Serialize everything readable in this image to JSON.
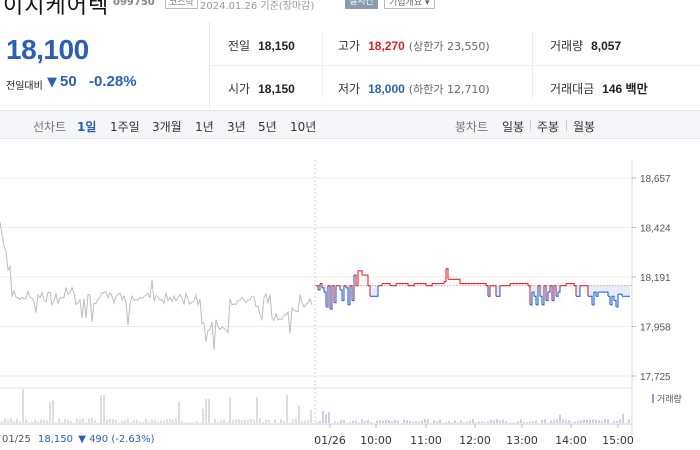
{
  "header": {
    "stock_name": "이지케어텍",
    "stock_code": "099750",
    "market": "코스닥",
    "date": "2024.01.26  기준(장마감)",
    "realtime": "실시간",
    "company_info": "기업개요 ▾"
  },
  "price": {
    "current": "18,100",
    "change_label": "전일대비",
    "change_arrow": "▼",
    "change_value": "50",
    "change_pct": "-0.28%"
  },
  "stats": {
    "prev_close_label": "전일",
    "prev_close": "18,150",
    "open_label": "시가",
    "open": "18,150",
    "high_label": "고가",
    "high": "18,270",
    "upper_limit": "(상한가 23,550)",
    "low_label": "저가",
    "low": "18,000",
    "lower_limit": "(하한가 12,710)",
    "volume_label": "거래량",
    "volume": "8,057",
    "amount_label": "거래대금",
    "amount": "146 백만"
  },
  "tabs": {
    "line_chart_label": "선차트",
    "periods": [
      "1일",
      "1주일",
      "3개월",
      "1년",
      "3년",
      "5년",
      "10년"
    ],
    "candle_label": "봉차트",
    "candles": [
      "일봉",
      "주봉",
      "월봉"
    ]
  },
  "chart_data": {
    "type": "line",
    "y_ticks": [
      "18,657",
      "18,424",
      "18,191",
      "17,958",
      "17,725"
    ],
    "ylim": [
      17725,
      18657
    ],
    "reference_price": 18150,
    "x_ticks": [
      "01/26",
      "10:00",
      "11:00",
      "12:00",
      "13:00",
      "14:00",
      "15:00"
    ],
    "prev_day_label": "01/25",
    "volume_label": "거래량",
    "colors": {
      "up": "#e0262b",
      "down": "#2a67d4",
      "prev_day": "#bdbdbd",
      "volume": "#a793d6"
    }
  },
  "footer": {
    "prev_date": "01/25",
    "prev_price": "18,150",
    "prev_change": "▼ 490 (-2.63%)"
  }
}
